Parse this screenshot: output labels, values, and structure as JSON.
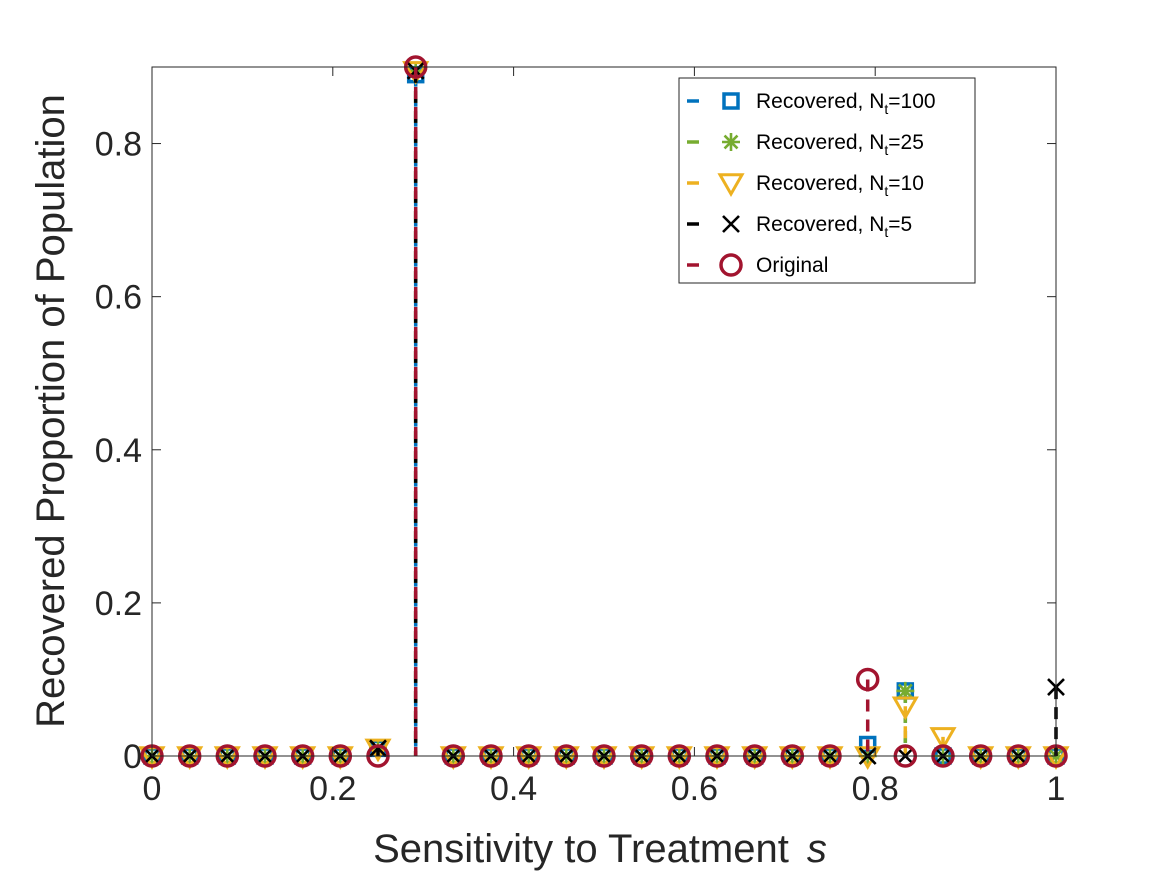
{
  "chart_data": {
    "type": "scatter",
    "xlabel": "Sensitivity to Treatment",
    "xlabel_symbol": "s",
    "ylabel": "Recovered Proportion of Population",
    "xlim": [
      0,
      1
    ],
    "ylim": [
      0,
      0.9
    ],
    "xticks": [
      0,
      0.2,
      0.4,
      0.6,
      0.8,
      1
    ],
    "xtick_labels": [
      "0",
      "0.2",
      "0.4",
      "0.6",
      "0.8",
      "1"
    ],
    "yticks": [
      0,
      0.2,
      0.4,
      0.6,
      0.8
    ],
    "ytick_labels": [
      "0",
      "0.2",
      "0.4",
      "0.6",
      "0.8"
    ],
    "grid": false,
    "legend_position": "top-right",
    "x": [
      0,
      0.0417,
      0.0833,
      0.125,
      0.1667,
      0.2083,
      0.25,
      0.2917,
      0.3333,
      0.375,
      0.4167,
      0.4583,
      0.5,
      0.5417,
      0.5833,
      0.625,
      0.6667,
      0.7083,
      0.75,
      0.7917,
      0.8333,
      0.875,
      0.9167,
      0.9583,
      1
    ],
    "series": [
      {
        "label_main": "Recovered, N",
        "label_sub": "t",
        "label_tail": "=100",
        "color": "#0072BD",
        "marker": "square",
        "values": [
          0,
          0,
          0,
          0,
          0,
          0,
          0.01,
          0.89,
          0,
          0,
          0,
          0,
          0,
          0,
          0,
          0,
          0,
          0,
          0,
          0.015,
          0.085,
          0,
          0,
          0,
          0
        ]
      },
      {
        "label_main": "Recovered, N",
        "label_sub": "t",
        "label_tail": "=25",
        "color": "#77AC30",
        "marker": "asterisk",
        "values": [
          0,
          0,
          0,
          0,
          0,
          0,
          0.01,
          0.895,
          0,
          0,
          0,
          0,
          0,
          0,
          0,
          0,
          0,
          0,
          0,
          0,
          0.085,
          0,
          0,
          0,
          0
        ]
      },
      {
        "label_main": "Recovered, N",
        "label_sub": "t",
        "label_tail": "=10",
        "color": "#EDB120",
        "marker": "triangle-down",
        "values": [
          0,
          0,
          0,
          0,
          0,
          0,
          0.01,
          0.895,
          0,
          0,
          0,
          0,
          0,
          0,
          0,
          0,
          0,
          0,
          0,
          0,
          0.065,
          0.025,
          0,
          0,
          0
        ]
      },
      {
        "label_main": "Recovered, N",
        "label_sub": "t",
        "label_tail": "=5",
        "color": "#000000",
        "marker": "x",
        "values": [
          0,
          0,
          0,
          0,
          0,
          0,
          0.01,
          0.895,
          0,
          0,
          0,
          0,
          0,
          0,
          0,
          0,
          0,
          0,
          0,
          0,
          0,
          0,
          0,
          0,
          0.09
        ]
      },
      {
        "label_main": "Original",
        "label_sub": "",
        "label_tail": "",
        "color": "#A2142F",
        "marker": "circle",
        "values": [
          0,
          0,
          0,
          0,
          0,
          0,
          0,
          0.9,
          0,
          0,
          0,
          0,
          0,
          0,
          0,
          0,
          0,
          0,
          0,
          0.1,
          0,
          0,
          0,
          0,
          0
        ]
      }
    ]
  }
}
